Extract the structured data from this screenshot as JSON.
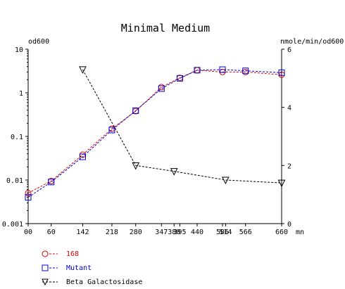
{
  "chart_data": {
    "type": "line",
    "title": "Minimal Medium",
    "y_left_label": "od600",
    "y_right_label": "nmole/min/od600",
    "x_unit_label": "mn",
    "x_ticks": [
      0,
      60,
      142,
      218,
      280,
      347,
      380,
      395,
      440,
      506,
      514,
      566,
      660
    ],
    "x_tick_labels": [
      "00",
      "60",
      "142",
      "218",
      "280",
      "347",
      "380",
      "395",
      "440",
      "506",
      "514",
      "566",
      "660"
    ],
    "xlim": [
      0,
      660
    ],
    "y_left_scale": "log",
    "y_left_ticks": [
      0.001,
      0.01,
      0.1,
      1,
      10
    ],
    "y_left_tick_labels": [
      "0.001",
      "0.01",
      "0.1",
      "1",
      "10"
    ],
    "ylim_left": [
      0.001,
      10
    ],
    "y_right_ticks": [
      0,
      2,
      4,
      6
    ],
    "y_right_tick_labels": [
      "0",
      "2",
      "4",
      "6"
    ],
    "ylim_right": [
      0,
      6
    ],
    "grid": false,
    "legend_position": "bottom-left",
    "series": [
      {
        "name": "168",
        "axis": "left",
        "color": "#dd0000",
        "marker": "circle",
        "x": [
          0,
          60,
          142,
          218,
          280,
          347,
          395,
          440,
          506,
          566,
          660
        ],
        "y": [
          0.005,
          0.0095,
          0.038,
          0.15,
          0.38,
          1.35,
          2.2,
          3.3,
          3.0,
          3.0,
          2.6
        ]
      },
      {
        "name": "Mutant",
        "axis": "left",
        "color": "#0000cc",
        "marker": "square",
        "x": [
          0,
          60,
          142,
          218,
          280,
          347,
          395,
          440,
          506,
          566,
          660
        ],
        "y": [
          0.004,
          0.009,
          0.034,
          0.14,
          0.39,
          1.25,
          2.15,
          3.3,
          3.4,
          3.2,
          2.9
        ]
      },
      {
        "name": "Beta Galactosidase",
        "axis": "right",
        "color": "#000000",
        "marker": "triangle-down",
        "x": [
          142,
          280,
          380,
          514,
          660
        ],
        "y": [
          5.3,
          2.0,
          1.8,
          1.5,
          1.4
        ]
      }
    ]
  }
}
